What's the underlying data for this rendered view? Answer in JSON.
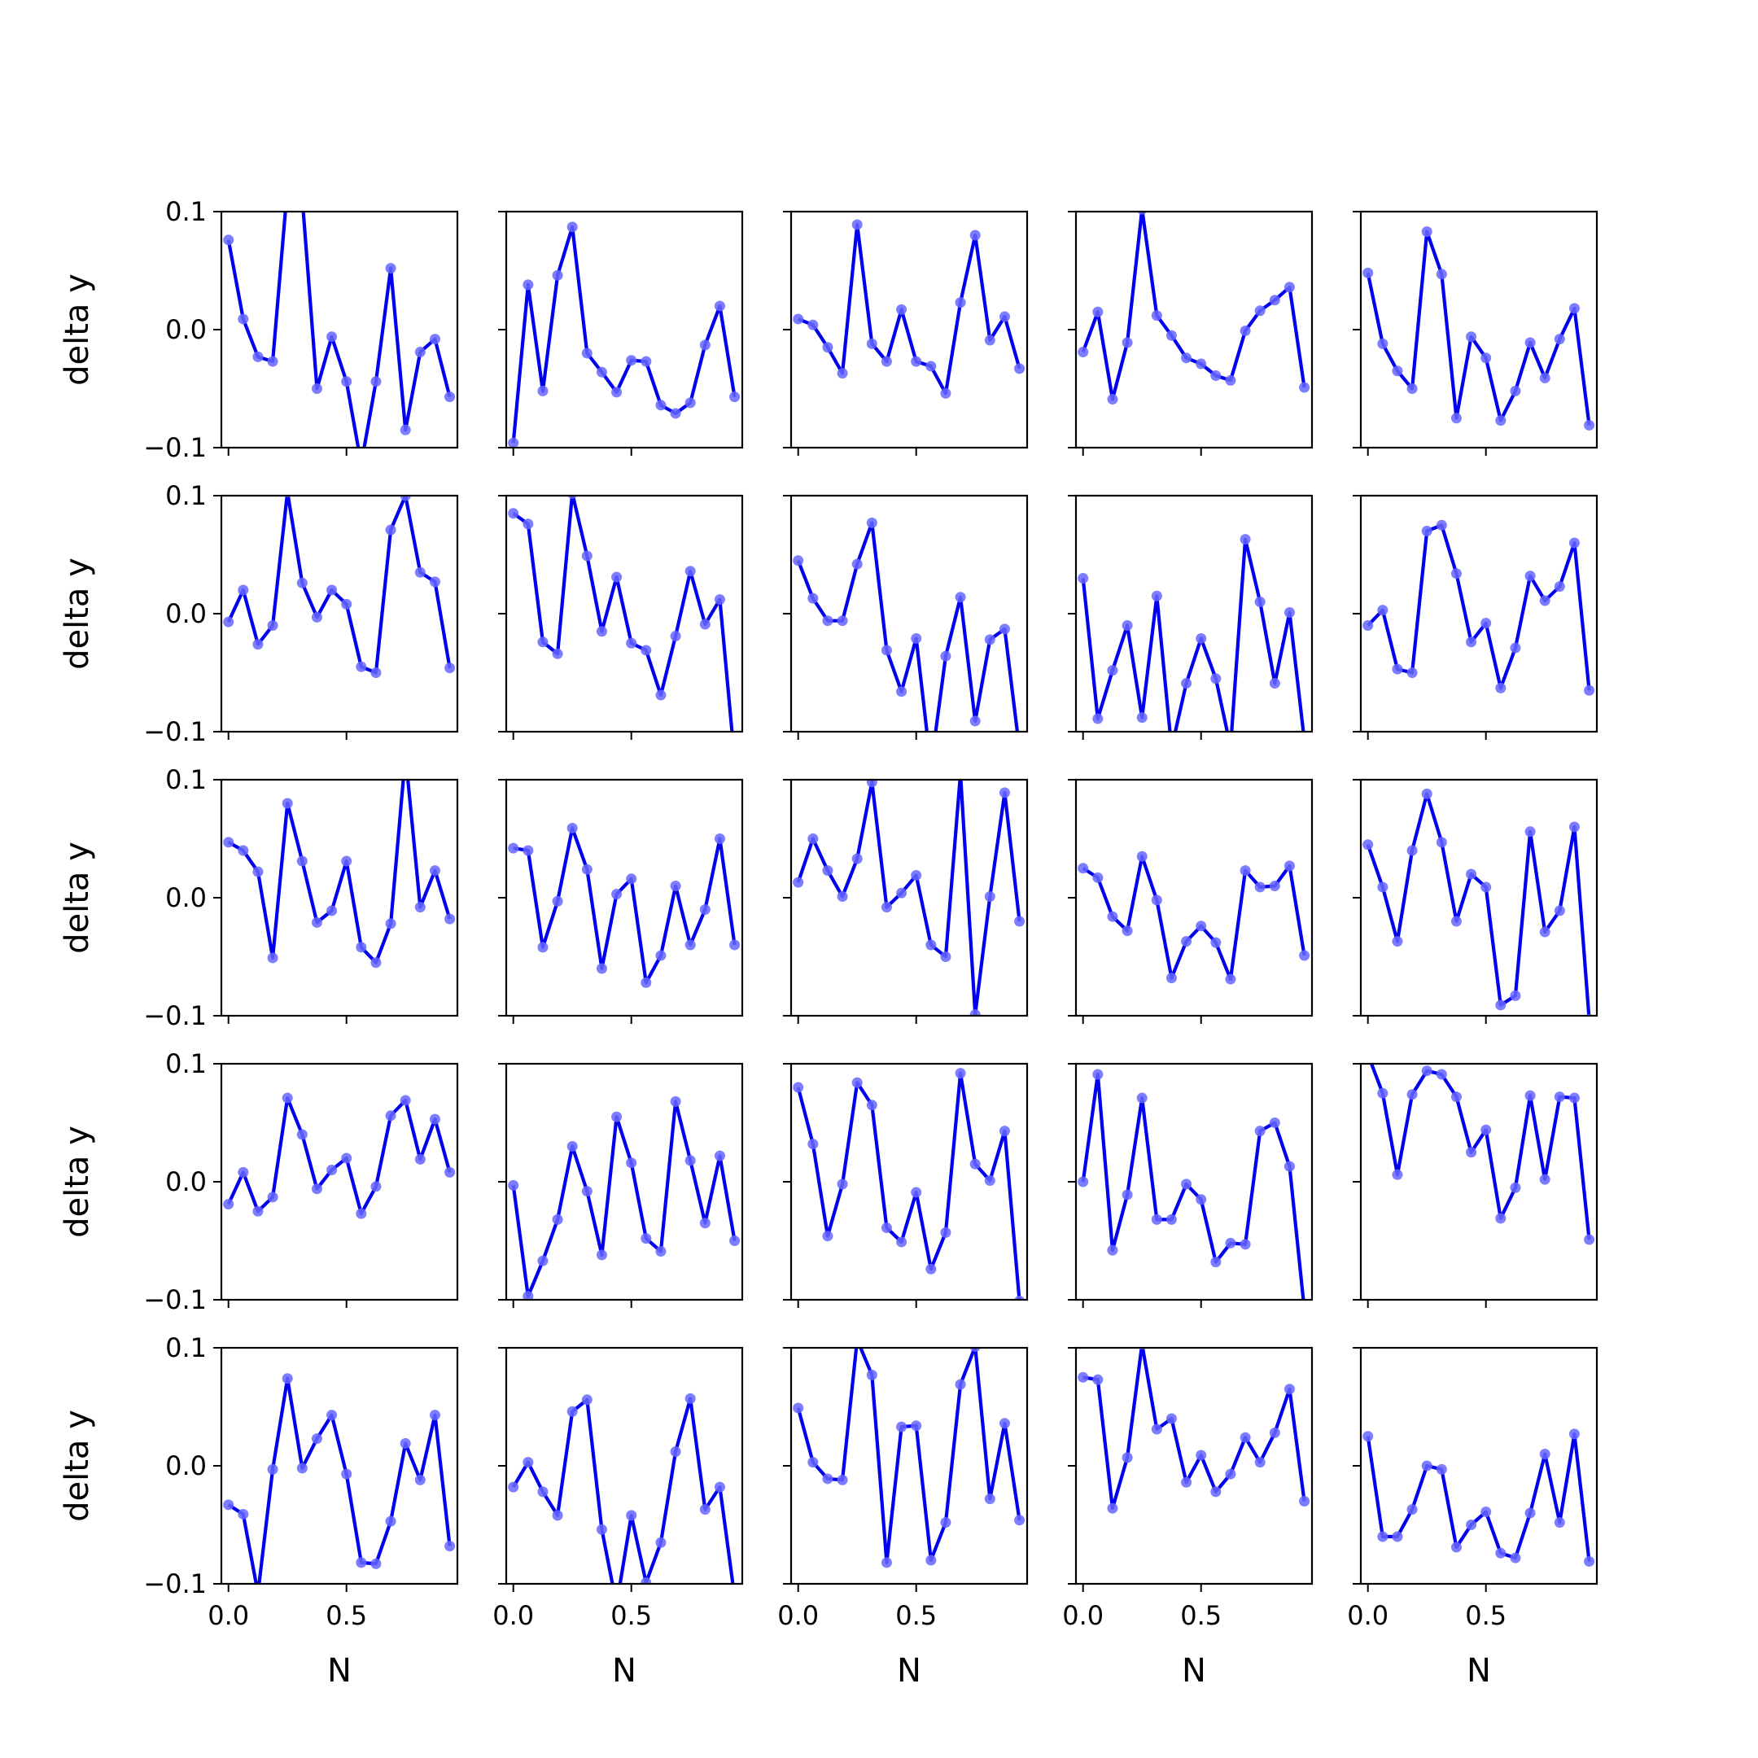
{
  "chart_data": {
    "type": "line",
    "layout": {
      "rows": 5,
      "cols": 5,
      "sharex": true,
      "sharey": true
    },
    "xlabel": "N",
    "ylabel": "delta y",
    "xlim": [
      -0.03,
      0.97
    ],
    "ylim": [
      -0.1,
      0.1
    ],
    "xticks": [
      0.0,
      0.5
    ],
    "xtick_labels": [
      "0.0",
      "0.5"
    ],
    "yticks": [
      -0.1,
      0.0,
      0.1
    ],
    "ytick_labels": [
      "−0.1",
      "0.0",
      "0.1"
    ],
    "grid": false,
    "legend": "none",
    "line_color": "#0000ee",
    "marker_color": "#6666ff",
    "x": [
      0.0,
      0.0625,
      0.125,
      0.1875,
      0.25,
      0.3125,
      0.375,
      0.4375,
      0.5,
      0.5625,
      0.625,
      0.6875,
      0.75,
      0.8125,
      0.875,
      0.9375
    ],
    "panels": [
      {
        "row": 0,
        "col": 0,
        "values": [
          0.076,
          0.009,
          -0.023,
          -0.027,
          0.121,
          0.112,
          -0.05,
          -0.006,
          -0.044,
          -0.114,
          -0.044,
          0.052,
          -0.085,
          -0.019,
          -0.008,
          -0.057
        ]
      },
      {
        "row": 0,
        "col": 1,
        "values": [
          -0.096,
          0.038,
          -0.052,
          0.046,
          0.087,
          -0.02,
          -0.036,
          -0.053,
          -0.026,
          -0.027,
          -0.064,
          -0.071,
          -0.062,
          -0.013,
          0.02,
          -0.057
        ]
      },
      {
        "row": 0,
        "col": 2,
        "values": [
          0.009,
          0.004,
          -0.015,
          -0.037,
          0.089,
          -0.012,
          -0.027,
          0.017,
          -0.027,
          -0.031,
          -0.054,
          0.023,
          0.08,
          -0.009,
          0.011,
          -0.033
        ]
      },
      {
        "row": 0,
        "col": 3,
        "values": [
          -0.019,
          0.015,
          -0.059,
          -0.011,
          0.102,
          0.012,
          -0.005,
          -0.024,
          -0.029,
          -0.039,
          -0.043,
          -0.001,
          0.016,
          0.025,
          0.036,
          -0.049
        ]
      },
      {
        "row": 0,
        "col": 4,
        "values": [
          0.048,
          -0.012,
          -0.035,
          -0.05,
          0.083,
          0.047,
          -0.075,
          -0.006,
          -0.024,
          -0.077,
          -0.052,
          -0.011,
          -0.041,
          -0.008,
          0.018,
          -0.081
        ]
      },
      {
        "row": 1,
        "col": 0,
        "values": [
          -0.007,
          0.02,
          -0.026,
          -0.01,
          0.103,
          0.026,
          -0.003,
          0.02,
          0.008,
          -0.045,
          -0.05,
          0.071,
          0.1,
          0.035,
          0.027,
          -0.046
        ]
      },
      {
        "row": 1,
        "col": 1,
        "values": [
          0.085,
          0.076,
          -0.024,
          -0.034,
          0.102,
          0.049,
          -0.015,
          0.031,
          -0.025,
          -0.031,
          -0.069,
          -0.019,
          0.036,
          -0.009,
          0.012,
          -0.124
        ]
      },
      {
        "row": 1,
        "col": 2,
        "values": [
          0.045,
          0.013,
          -0.006,
          -0.006,
          0.042,
          0.077,
          -0.031,
          -0.066,
          -0.021,
          -0.13,
          -0.036,
          0.014,
          -0.091,
          -0.022,
          -0.013,
          -0.115
        ]
      },
      {
        "row": 1,
        "col": 3,
        "values": [
          0.03,
          -0.089,
          -0.048,
          -0.01,
          -0.088,
          0.015,
          -0.114,
          -0.059,
          -0.021,
          -0.055,
          -0.113,
          0.063,
          0.01,
          -0.059,
          0.001,
          -0.107
        ]
      },
      {
        "row": 1,
        "col": 4,
        "values": [
          -0.01,
          0.003,
          -0.047,
          -0.05,
          0.07,
          0.075,
          0.034,
          -0.024,
          -0.008,
          -0.063,
          -0.029,
          0.032,
          0.011,
          0.023,
          0.06,
          -0.065
        ]
      },
      {
        "row": 2,
        "col": 0,
        "values": [
          0.047,
          0.04,
          0.022,
          -0.051,
          0.08,
          0.031,
          -0.021,
          -0.011,
          0.031,
          -0.042,
          -0.055,
          -0.022,
          0.121,
          -0.008,
          0.023,
          -0.018
        ]
      },
      {
        "row": 2,
        "col": 1,
        "values": [
          0.042,
          0.04,
          -0.042,
          -0.003,
          0.059,
          0.024,
          -0.06,
          0.003,
          0.016,
          -0.072,
          -0.049,
          0.01,
          -0.04,
          -0.01,
          0.05,
          -0.04
        ]
      },
      {
        "row": 2,
        "col": 2,
        "values": [
          0.013,
          0.05,
          0.023,
          0.001,
          0.033,
          0.098,
          -0.008,
          0.004,
          0.019,
          -0.04,
          -0.05,
          0.105,
          -0.099,
          0.001,
          0.089,
          -0.02
        ]
      },
      {
        "row": 2,
        "col": 3,
        "values": [
          0.025,
          0.017,
          -0.016,
          -0.028,
          0.035,
          -0.002,
          -0.068,
          -0.037,
          -0.024,
          -0.038,
          -0.069,
          0.023,
          0.009,
          0.01,
          0.027,
          -0.049
        ]
      },
      {
        "row": 2,
        "col": 4,
        "values": [
          0.045,
          0.009,
          -0.037,
          0.04,
          0.088,
          0.047,
          -0.02,
          0.02,
          0.009,
          -0.091,
          -0.083,
          0.056,
          -0.029,
          -0.011,
          0.06,
          -0.103
        ]
      },
      {
        "row": 3,
        "col": 0,
        "values": [
          -0.019,
          0.008,
          -0.025,
          -0.013,
          0.071,
          0.04,
          -0.006,
          0.01,
          0.02,
          -0.027,
          -0.004,
          0.056,
          0.069,
          0.019,
          0.053,
          0.008
        ]
      },
      {
        "row": 3,
        "col": 1,
        "values": [
          -0.003,
          -0.097,
          -0.067,
          -0.032,
          0.03,
          -0.008,
          -0.062,
          0.055,
          0.016,
          -0.048,
          -0.059,
          0.068,
          0.018,
          -0.035,
          0.022,
          -0.05
        ]
      },
      {
        "row": 3,
        "col": 2,
        "values": [
          0.08,
          0.032,
          -0.046,
          -0.002,
          0.084,
          0.065,
          -0.039,
          -0.051,
          -0.009,
          -0.074,
          -0.043,
          0.092,
          0.015,
          0.001,
          0.043,
          -0.101
        ]
      },
      {
        "row": 3,
        "col": 3,
        "values": [
          0.0,
          0.091,
          -0.058,
          -0.011,
          0.071,
          -0.032,
          -0.032,
          -0.002,
          -0.015,
          -0.068,
          -0.052,
          -0.053,
          0.043,
          0.05,
          0.013,
          -0.108
        ]
      },
      {
        "row": 3,
        "col": 4,
        "values": [
          0.108,
          0.075,
          0.006,
          0.074,
          0.094,
          0.091,
          0.072,
          0.025,
          0.044,
          -0.031,
          -0.005,
          0.073,
          0.002,
          0.072,
          0.071,
          -0.049
        ]
      },
      {
        "row": 4,
        "col": 0,
        "values": [
          -0.033,
          -0.041,
          -0.108,
          -0.003,
          0.074,
          -0.002,
          0.023,
          0.043,
          -0.007,
          -0.082,
          -0.083,
          -0.047,
          0.019,
          -0.012,
          0.043,
          -0.068
        ]
      },
      {
        "row": 4,
        "col": 1,
        "values": [
          -0.018,
          0.003,
          -0.022,
          -0.042,
          0.046,
          0.056,
          -0.054,
          -0.118,
          -0.042,
          -0.099,
          -0.065,
          0.012,
          0.057,
          -0.037,
          -0.018,
          -0.111
        ]
      },
      {
        "row": 4,
        "col": 2,
        "values": [
          0.049,
          0.003,
          -0.011,
          -0.012,
          0.107,
          0.077,
          -0.082,
          0.033,
          0.034,
          -0.08,
          -0.048,
          0.069,
          0.101,
          -0.028,
          0.036,
          -0.046
        ]
      },
      {
        "row": 4,
        "col": 3,
        "values": [
          0.075,
          0.073,
          -0.036,
          0.007,
          0.103,
          0.031,
          0.04,
          -0.014,
          0.009,
          -0.022,
          -0.007,
          0.024,
          0.003,
          0.028,
          0.065,
          -0.03
        ]
      },
      {
        "row": 4,
        "col": 4,
        "values": [
          0.025,
          -0.06,
          -0.06,
          -0.037,
          0.0,
          -0.003,
          -0.069,
          -0.05,
          -0.039,
          -0.074,
          -0.078,
          -0.04,
          0.01,
          -0.048,
          0.027,
          -0.081
        ]
      }
    ]
  }
}
